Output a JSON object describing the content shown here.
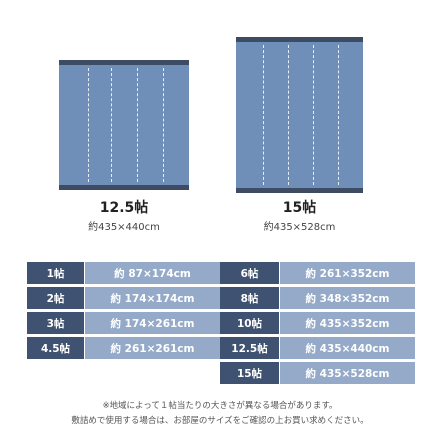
{
  "rugs": [
    {
      "title": "12.5帖",
      "size": "約435×440cm"
    },
    {
      "title": "15帖",
      "size": "約435×528cm"
    }
  ],
  "table_left": [
    {
      "label": "1帖",
      "value": "約 87×174cm"
    },
    {
      "label": "2帖",
      "value": "約 174×174cm"
    },
    {
      "label": "3帖",
      "value": "約 174×261cm"
    },
    {
      "label": "4.5帖",
      "value": "約 261×261cm"
    }
  ],
  "table_right": [
    {
      "label": "6帖",
      "value": "約 261×352cm"
    },
    {
      "label": "8帖",
      "value": "約 348×352cm"
    },
    {
      "label": "10帖",
      "value": "約 435×352cm"
    },
    {
      "label": "12.5帖",
      "value": "約 435×440cm"
    },
    {
      "label": "15帖",
      "value": "約 435×528cm"
    }
  ],
  "notes": {
    "line1": "※地域によって１帖当たりの大きさが異なる場合があります。",
    "line2": "敷詰めで使用する場合は、お部屋のサイズをご確認の上お買い求めください。"
  },
  "colors": {
    "rug": "#6f8fb8",
    "rug_edge": "#3d4c63",
    "label_cell": "#3f5272",
    "value_cell": "#95aac9"
  }
}
